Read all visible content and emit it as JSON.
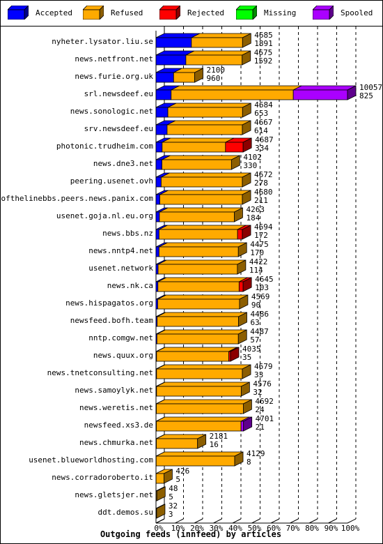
{
  "legend": [
    {
      "label": "Accepted",
      "color": "#0000ff"
    },
    {
      "label": "Refused",
      "color": "#ffaa00"
    },
    {
      "label": "Rejected",
      "color": "#ff0000"
    },
    {
      "label": "Missing",
      "color": "#00ff00"
    },
    {
      "label": "Spooled",
      "color": "#aa00ff"
    }
  ],
  "chart_data": {
    "type": "bar",
    "orientation": "horizontal",
    "stacked": true,
    "title": "Outgoing feeds (innfeed) by articles",
    "xlim": [
      0,
      100
    ],
    "xunit": "%",
    "xticks": [
      "0%",
      "10%",
      "20%",
      "30%",
      "40%",
      "50%",
      "60%",
      "70%",
      "80%",
      "90%",
      "100%"
    ],
    "series_names": [
      "Accepted",
      "Refused",
      "Rejected",
      "Missing",
      "Spooled"
    ],
    "series_colors": [
      "#0000ff",
      "#ffaa00",
      "#ff0000",
      "#00ff00",
      "#aa00ff"
    ],
    "rows": [
      {
        "label": "nyheter.lysator.liu.se",
        "total": "4685",
        "accepted_count": "1891",
        "values": [
          18.5,
          26.7,
          0,
          0,
          0
        ]
      },
      {
        "label": "news.netfront.net",
        "total": "4675",
        "accepted_count": "1592",
        "values": [
          15.6,
          29.4,
          0,
          0,
          0
        ]
      },
      {
        "label": "news.furie.org.uk",
        "total": "2100",
        "accepted_count": "960",
        "values": [
          9.2,
          11.0,
          0,
          0,
          0
        ]
      },
      {
        "label": "srl.newsdeef.eu",
        "total": "10057",
        "accepted_count": "825",
        "values": [
          7.9,
          63.8,
          0,
          0,
          28.3
        ]
      },
      {
        "label": "news.sonologic.net",
        "total": "4684",
        "accepted_count": "653",
        "values": [
          6.2,
          39.0,
          0,
          0,
          0
        ]
      },
      {
        "label": "srv.newsdeef.eu",
        "total": "4667",
        "accepted_count": "614",
        "values": [
          5.8,
          39.3,
          0,
          0,
          0
        ]
      },
      {
        "label": "photonic.trudheim.com",
        "total": "4687",
        "accepted_count": "334",
        "values": [
          3.2,
          33.1,
          9.2,
          0,
          0
        ]
      },
      {
        "label": "news.dne3.net",
        "total": "4102",
        "accepted_count": "330",
        "values": [
          3.1,
          36.3,
          0,
          0,
          0
        ]
      },
      {
        "label": "peering.usenet.ovh",
        "total": "4672",
        "accepted_count": "278",
        "values": [
          2.7,
          42.4,
          0,
          0,
          0
        ]
      },
      {
        "label": "endofthelinebbs.peers.news.panix.com",
        "total": "4680",
        "accepted_count": "211",
        "values": [
          2.0,
          43.1,
          0,
          0,
          0
        ]
      },
      {
        "label": "usenet.goja.nl.eu.org",
        "total": "4263",
        "accepted_count": "184",
        "values": [
          1.8,
          39.1,
          0,
          0,
          0
        ]
      },
      {
        "label": "news.bbs.nz",
        "total": "4694",
        "accepted_count": "172",
        "values": [
          1.6,
          41.0,
          2.5,
          0,
          0
        ]
      },
      {
        "label": "news.nntp4.net",
        "total": "4475",
        "accepted_count": "170",
        "values": [
          1.6,
          41.4,
          0,
          0,
          0
        ]
      },
      {
        "label": "usenet.network",
        "total": "4422",
        "accepted_count": "114",
        "values": [
          1.1,
          41.4,
          0,
          0,
          0
        ]
      },
      {
        "label": "news.nk.ca",
        "total": "4645",
        "accepted_count": "103",
        "values": [
          1.0,
          42.4,
          2.1,
          0,
          0
        ]
      },
      {
        "label": "news.hispagatos.org",
        "total": "4569",
        "accepted_count": "90",
        "values": [
          0.9,
          42.7,
          0,
          0,
          0
        ]
      },
      {
        "label": "newsfeed.bofh.team",
        "total": "4486",
        "accepted_count": "63",
        "values": [
          0.6,
          42.5,
          0,
          0,
          0
        ]
      },
      {
        "label": "nntp.comgw.net",
        "total": "4487",
        "accepted_count": "57",
        "values": [
          0.5,
          42.5,
          0,
          0,
          0
        ]
      },
      {
        "label": "news.quux.org",
        "total": "4035",
        "accepted_count": "35",
        "values": [
          0.3,
          37.7,
          0.9,
          0,
          0
        ]
      },
      {
        "label": "news.tnetconsulting.net",
        "total": "4679",
        "accepted_count": "33",
        "values": [
          0.3,
          44.8,
          0,
          0,
          0
        ]
      },
      {
        "label": "news.samoylyk.net",
        "total": "4576",
        "accepted_count": "32",
        "values": [
          0.3,
          44.2,
          0,
          0,
          0
        ]
      },
      {
        "label": "news.weretis.net",
        "total": "4692",
        "accepted_count": "24",
        "values": [
          0.2,
          45.4,
          0,
          0,
          0
        ]
      },
      {
        "label": "newsfeed.xs3.de",
        "total": "4701",
        "accepted_count": "21",
        "values": [
          0.2,
          44.2,
          0,
          0,
          1.3
        ]
      },
      {
        "label": "news.chmurka.net",
        "total": "2181",
        "accepted_count": "16",
        "values": [
          0.2,
          21.5,
          0,
          0,
          0
        ]
      },
      {
        "label": "usenet.blueworldhosting.com",
        "total": "4129",
        "accepted_count": "8",
        "values": [
          0.1,
          41.0,
          0,
          0,
          0
        ]
      },
      {
        "label": "news.corradoroberto.it",
        "total": "426",
        "accepted_count": "5",
        "values": [
          0.05,
          4.1,
          0,
          0,
          0
        ]
      },
      {
        "label": "news.gletsjer.net",
        "total": "48",
        "accepted_count": "5",
        "values": [
          0.05,
          0.4,
          0,
          0,
          0
        ]
      },
      {
        "label": "ddt.demos.su",
        "total": "32",
        "accepted_count": "3",
        "values": [
          0.03,
          0.3,
          0,
          0,
          0
        ]
      }
    ]
  }
}
